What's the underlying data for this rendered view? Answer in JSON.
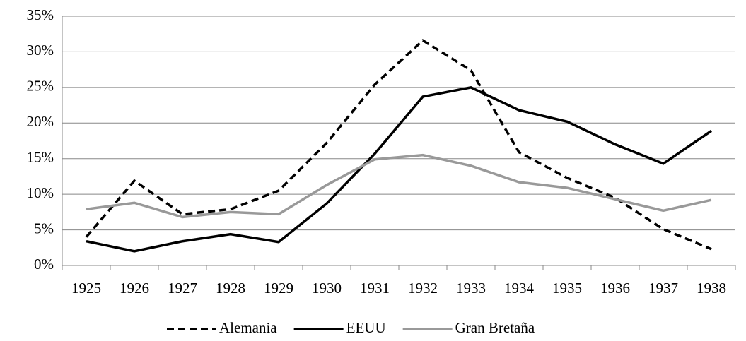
{
  "chart_data": {
    "type": "line",
    "categories": [
      "1925",
      "1926",
      "1927",
      "1928",
      "1929",
      "1930",
      "1931",
      "1932",
      "1933",
      "1934",
      "1935",
      "1936",
      "1937",
      "1938"
    ],
    "series": [
      {
        "name": "Alemania",
        "color": "#000000",
        "dash": true,
        "values": [
          4.0,
          11.9,
          7.2,
          7.9,
          10.5,
          17.2,
          25.4,
          31.6,
          27.4,
          15.9,
          12.3,
          9.5,
          5.1,
          2.3
        ]
      },
      {
        "name": "EEUU",
        "color": "#000000",
        "dash": false,
        "values": [
          3.4,
          2.0,
          3.4,
          4.4,
          3.3,
          8.7,
          15.7,
          23.7,
          25.0,
          21.8,
          20.2,
          17.0,
          14.3,
          18.9
        ]
      },
      {
        "name": "Gran Bretaña",
        "color": "#999999",
        "dash": false,
        "values": [
          7.9,
          8.8,
          6.8,
          7.5,
          7.2,
          11.3,
          14.9,
          15.5,
          14.0,
          11.7,
          10.9,
          9.3,
          7.7,
          9.2
        ]
      }
    ],
    "ylim": [
      0,
      35
    ],
    "yticks": [
      {
        "value": 0,
        "label": "0%"
      },
      {
        "value": 5,
        "label": "5%"
      },
      {
        "value": 10,
        "label": "10%"
      },
      {
        "value": 15,
        "label": "15%"
      },
      {
        "value": 20,
        "label": "20%"
      },
      {
        "value": 25,
        "label": "25%"
      },
      {
        "value": 30,
        "label": "30%"
      },
      {
        "value": 35,
        "label": "35%"
      }
    ],
    "grid": true,
    "legend": "bottom"
  }
}
